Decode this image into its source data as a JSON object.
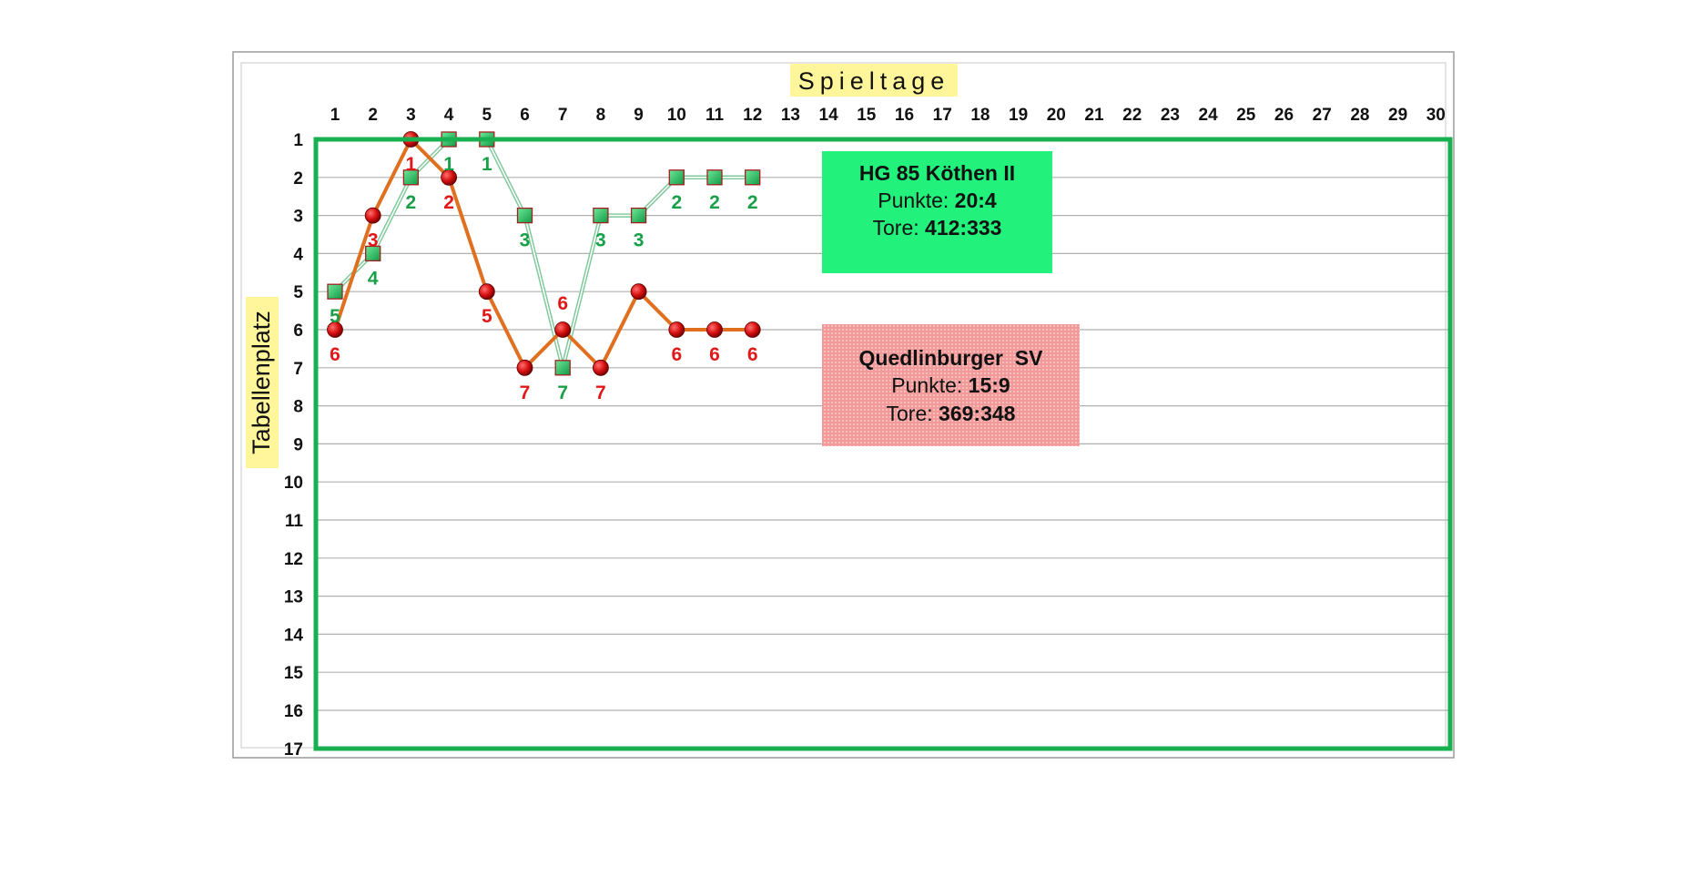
{
  "chart_data": {
    "type": "line",
    "xlabel": "Spieltage",
    "ylabel": "Tabellenplatz",
    "x": [
      1,
      2,
      3,
      4,
      5,
      6,
      7,
      8,
      9,
      10,
      11,
      12,
      13,
      14,
      15,
      16,
      17,
      18,
      19,
      20,
      21,
      22,
      23,
      24,
      25,
      26,
      27,
      28,
      29,
      30
    ],
    "y_ticks": [
      1,
      2,
      3,
      4,
      5,
      6,
      7,
      8,
      9,
      10,
      11,
      12,
      13,
      14,
      15,
      16,
      17
    ],
    "xlim": [
      1,
      30
    ],
    "ylim": [
      17,
      1
    ],
    "y_inverted": true,
    "grid": true,
    "series": [
      {
        "name": "HG 85 Köthen II",
        "color": "#1ab35a",
        "marker": "square",
        "x": [
          1,
          2,
          3,
          4,
          5,
          6,
          7,
          8,
          9,
          10,
          11,
          12
        ],
        "values": [
          5,
          4,
          2,
          1,
          1,
          3,
          7,
          3,
          3,
          2,
          2,
          2
        ],
        "labels": [
          "5",
          "4",
          "2",
          "1",
          "1",
          "3",
          "7",
          "3",
          "3",
          "2",
          "2",
          "2"
        ]
      },
      {
        "name": "Quedlinburger SV",
        "color": "#e07020",
        "marker": "circle",
        "x": [
          1,
          2,
          3,
          4,
          5,
          6,
          7,
          8,
          9,
          10,
          11,
          12
        ],
        "values": [
          6,
          3,
          1,
          2,
          5,
          7,
          6,
          7,
          5,
          6,
          6,
          6
        ],
        "labels": [
          "6",
          "3",
          "1",
          "2",
          "5",
          "7",
          "6",
          "7",
          "",
          "6",
          "6",
          "6"
        ]
      }
    ]
  },
  "info_boxes": [
    {
      "team": "HG 85 Köthen II",
      "punkte_label": "Punkte:",
      "punkte": "20:4",
      "tore_label": "Tore:",
      "tore": "412:333",
      "color": "#22f27c"
    },
    {
      "team": "Quedlinburger  SV",
      "punkte_label": "Punkte:",
      "punkte": "15:9",
      "tore_label": "Tore:",
      "tore": "369:348",
      "color": "#f7a4a4"
    }
  ],
  "colors": {
    "plot_border": "#18b050",
    "gridline": "#b0b0b0",
    "axis_title_bg": "#fff59a",
    "label_green": "#18a048",
    "label_red": "#e01818",
    "marker_red": "#d81010",
    "marker_green": "#20b858"
  }
}
